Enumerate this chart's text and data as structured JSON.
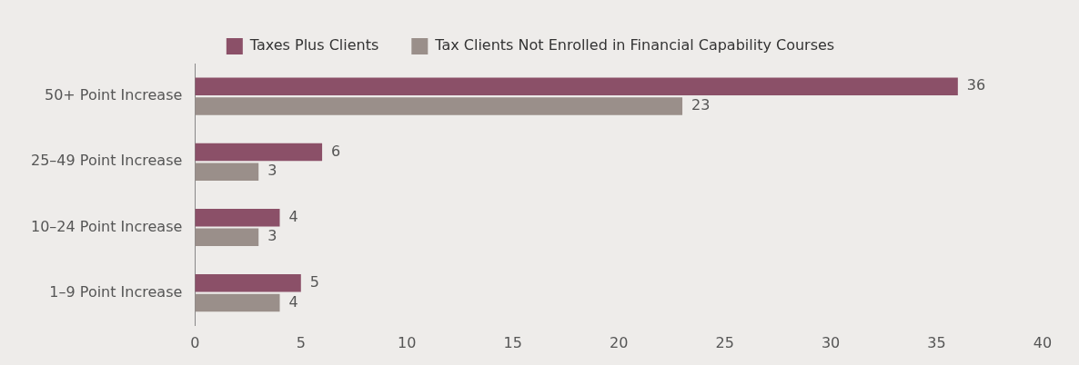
{
  "chart_data": {
    "type": "bar",
    "orientation": "horizontal",
    "categories": [
      "50+ Point Increase",
      "25–49 Point Increase",
      "10–24 Point Increase",
      "1–9 Point Increase"
    ],
    "series": [
      {
        "name": "Taxes Plus Clients",
        "color": "#8b5068",
        "values": [
          36,
          6,
          4,
          5
        ]
      },
      {
        "name": "Tax Clients Not Enrolled in Financial Capability Courses",
        "color": "#9a8f8a",
        "values": [
          23,
          3,
          3,
          4
        ]
      }
    ],
    "xlim": [
      0,
      40
    ],
    "xticks": [
      0,
      5,
      10,
      15,
      20,
      25,
      30,
      35,
      40
    ],
    "grid": false,
    "legend": "top",
    "data_labels": true
  }
}
